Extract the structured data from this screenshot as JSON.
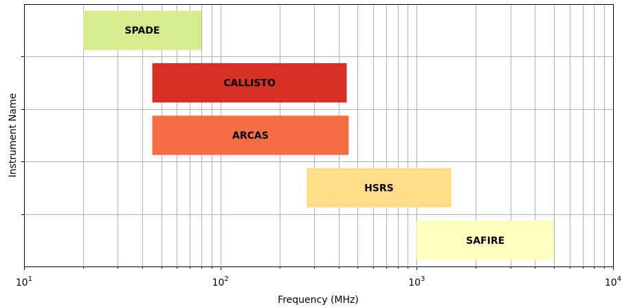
{
  "chart_data": {
    "type": "bar",
    "orientation": "horizontal",
    "title": "",
    "xlabel": "Frequency (MHz)",
    "ylabel": "Instrument Name",
    "xscale": "log",
    "xlim": [
      10,
      10000
    ],
    "grid": true,
    "x_tick_labels": [
      {
        "value": 10,
        "base": "10",
        "exp": "1"
      },
      {
        "value": 100,
        "base": "10",
        "exp": "2"
      },
      {
        "value": 1000,
        "base": "10",
        "exp": "3"
      },
      {
        "value": 10000,
        "base": "10",
        "exp": "4"
      }
    ],
    "series": [
      {
        "name": "SPADE",
        "start": 20,
        "end": 80,
        "color": "#d7ec8d"
      },
      {
        "name": "CALLISTO",
        "start": 45,
        "end": 440,
        "color": "#d73027"
      },
      {
        "name": "ARCAS",
        "start": 45,
        "end": 450,
        "color": "#f46d43"
      },
      {
        "name": "HSRS",
        "start": 275,
        "end": 1500,
        "color": "#fedd8a"
      },
      {
        "name": "SAFIRE",
        "start": 1000,
        "end": 5000,
        "color": "#ffffbf"
      }
    ]
  }
}
